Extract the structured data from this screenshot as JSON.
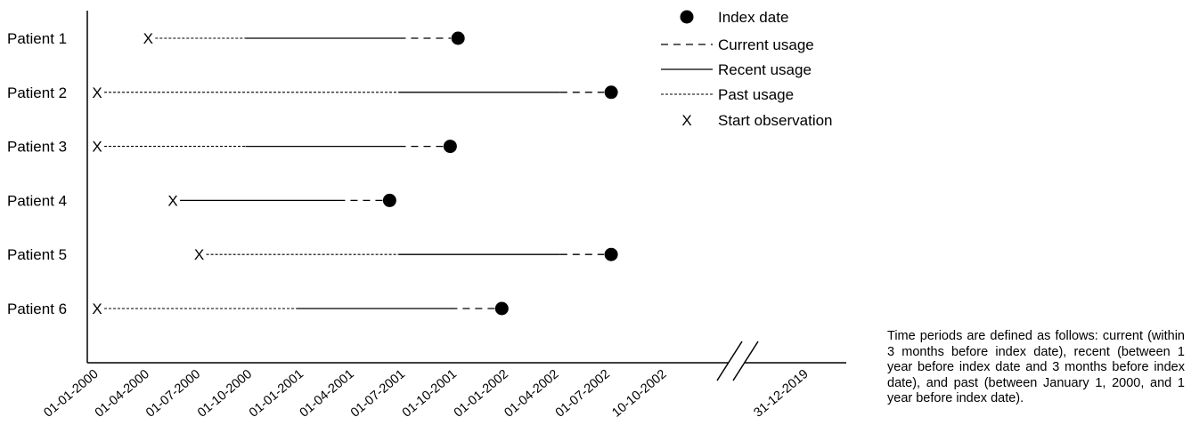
{
  "patients": [
    {
      "label": "Patient 1",
      "start": "2000-04-01",
      "recent_start": "2000-10-01",
      "current_start": "2001-07-01",
      "index_date": "2001-10-15"
    },
    {
      "label": "Patient 2",
      "start": "2000-01-01",
      "recent_start": "2001-07-01",
      "current_start": "2002-04-15",
      "index_date": "2002-07-15"
    },
    {
      "label": "Patient 3",
      "start": "2000-01-01",
      "recent_start": "2000-10-01",
      "current_start": "2001-07-01",
      "index_date": "2001-10-01"
    },
    {
      "label": "Patient 4",
      "start": "2000-05-15",
      "recent_start": "2000-05-15",
      "current_start": "2001-03-15",
      "index_date": "2001-06-15"
    },
    {
      "label": "Patient 5",
      "start": "2000-07-01",
      "recent_start": "2001-07-01",
      "current_start": "2002-04-15",
      "index_date": "2002-07-15"
    },
    {
      "label": "Patient 6",
      "start": "2000-01-01",
      "recent_start": "2001-01-01",
      "current_start": "2001-10-01",
      "index_date": "2002-01-01"
    }
  ],
  "x_ticks": [
    "01-01-2000",
    "01-04-2000",
    "01-07-2000",
    "01-10-2000",
    "01-01-2001",
    "01-04-2001",
    "01-07-2001",
    "01-10-2001",
    "01-01-2002",
    "01-04-2002",
    "01-07-2002",
    "10-10-2002",
    "31-12-2019"
  ],
  "axis_break_after": "10-10-2002",
  "legend": {
    "index_date": "Index date",
    "current": "Current usage",
    "recent": "Recent usage",
    "past": "Past usage",
    "start": "Start observation",
    "start_symbol": "X"
  },
  "note": "Time periods are defined as follows: current (within 3 months before index date), recent (between 1 year before index date and 3 months before index date), and past (between January 1, 2000, and 1 year before index date)."
}
